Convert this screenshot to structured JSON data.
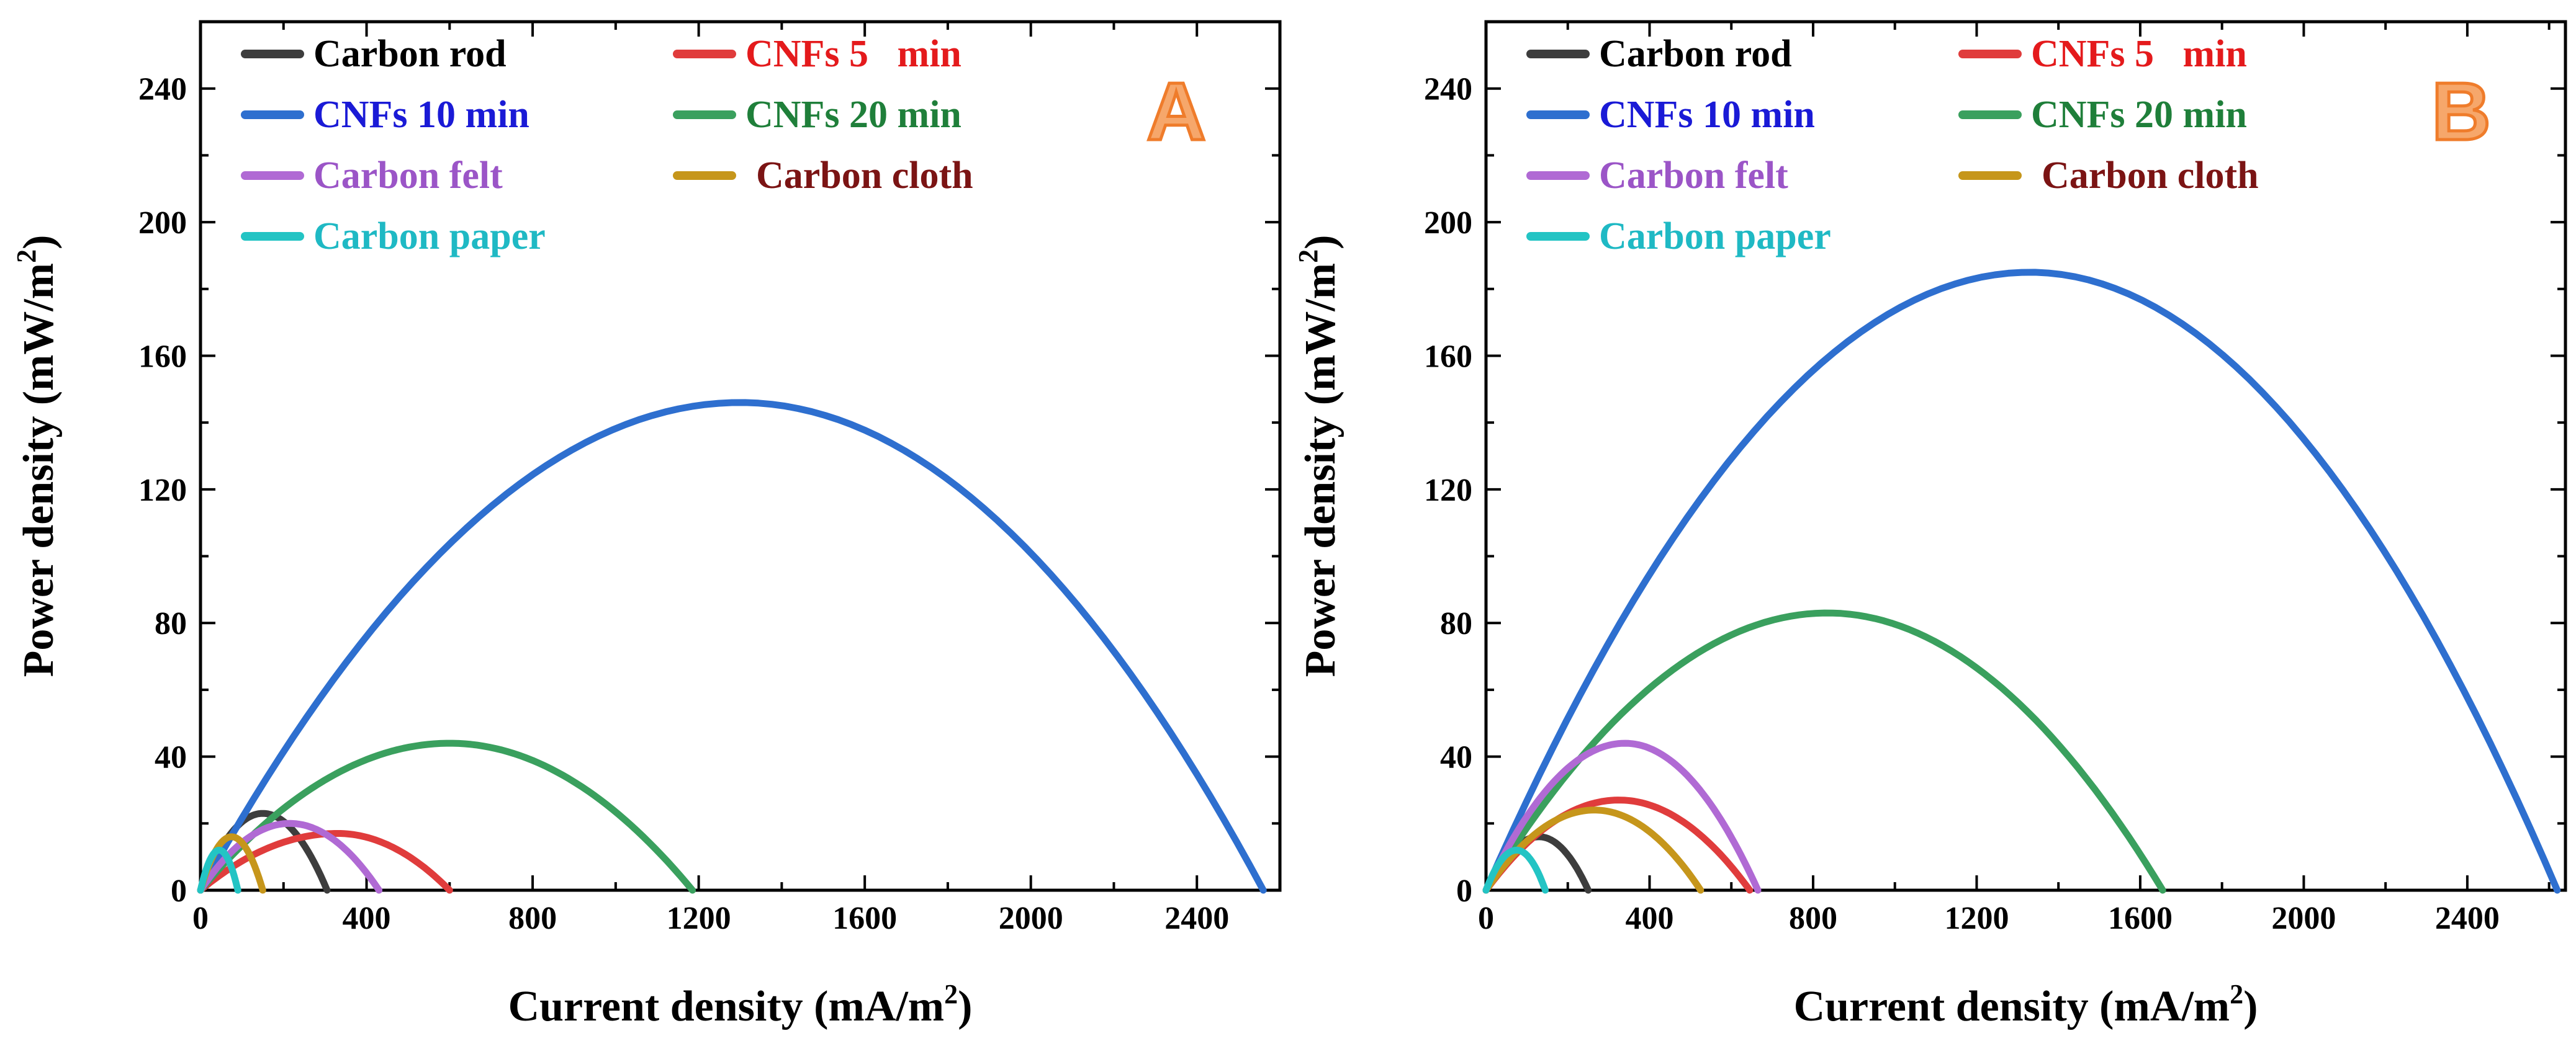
{
  "chart_data": [
    {
      "type": "line",
      "panel_label": "A",
      "xlabel": "Current density (mA/m",
      "xlabel_sup": "2",
      "ylabel": "Power density (mW/m",
      "ylabel_sup": "2",
      "xlim": [
        0,
        2600
      ],
      "ylim": [
        0,
        260
      ],
      "xticks": [
        0,
        400,
        800,
        1200,
        1600,
        2000,
        2400
      ],
      "yticks": [
        0,
        40,
        80,
        120,
        160,
        200,
        240
      ],
      "tick_labels_x": [
        "0",
        "400",
        "800",
        "1200",
        "1600",
        "2000",
        "2400"
      ],
      "tick_labels_y": [
        "0",
        "40",
        "80",
        "120",
        "160",
        "200",
        "240"
      ],
      "legend_location": "top-left, two columns",
      "series": [
        {
          "name": "Carbon rod",
          "color": "#3d3d3d",
          "text_color": "#000000",
          "peak_x": 150,
          "peak_y": 23,
          "max_x": 305
        },
        {
          "name": "CNFs 5   min",
          "color": "#e03c3c",
          "text_color": "#e41a1c",
          "peak_x": 330,
          "peak_y": 17,
          "max_x": 600
        },
        {
          "name": "CNFs 10 min",
          "color": "#2e6fcf",
          "text_color": "#1a1ad6",
          "peak_x": 1300,
          "peak_y": 146,
          "max_x": 2560
        },
        {
          "name": "CNFs 20 min",
          "color": "#3aa05e",
          "text_color": "#1f7f3a",
          "peak_x": 600,
          "peak_y": 44,
          "max_x": 1185
        },
        {
          "name": "Carbon felt",
          "color": "#b06ad4",
          "text_color": "#9b55c7",
          "peak_x": 215,
          "peak_y": 20,
          "max_x": 430
        },
        {
          "name": "Carbon cloth",
          "color": "#c6961b",
          "text_color": "#7b1414",
          "peak_x": 75,
          "peak_y": 16,
          "max_x": 150
        },
        {
          "name": "Carbon paper",
          "color": "#23c4c4",
          "text_color": "#1fb9c4",
          "peak_x": 45,
          "peak_y": 12,
          "max_x": 90
        }
      ]
    },
    {
      "type": "line",
      "panel_label": "B",
      "xlabel": "Current density (mA/m",
      "xlabel_sup": "2",
      "ylabel": "Power density (mW/m",
      "ylabel_sup": "2",
      "xlim": [
        0,
        2640
      ],
      "ylim": [
        0,
        260
      ],
      "xticks": [
        0,
        400,
        800,
        1200,
        1600,
        2000,
        2400
      ],
      "yticks": [
        0,
        40,
        80,
        120,
        160,
        200,
        240
      ],
      "tick_labels_x": [
        "0",
        "400",
        "800",
        "1200",
        "1600",
        "2000",
        "2400"
      ],
      "tick_labels_y": [
        "0",
        "40",
        "80",
        "120",
        "160",
        "200",
        "240"
      ],
      "legend_location": "top-left, two columns",
      "series": [
        {
          "name": "Carbon rod",
          "color": "#3d3d3d",
          "text_color": "#000000",
          "peak_x": 130,
          "peak_y": 16,
          "max_x": 250
        },
        {
          "name": "CNFs 5   min",
          "color": "#e03c3c",
          "text_color": "#e41a1c",
          "peak_x": 325,
          "peak_y": 27,
          "max_x": 645
        },
        {
          "name": "CNFs 10 min",
          "color": "#2e6fcf",
          "text_color": "#1a1ad6",
          "peak_x": 1330,
          "peak_y": 185,
          "max_x": 2620
        },
        {
          "name": "CNFs 20 min",
          "color": "#3aa05e",
          "text_color": "#1f7f3a",
          "peak_x": 835,
          "peak_y": 83,
          "max_x": 1655
        },
        {
          "name": "Carbon felt",
          "color": "#b06ad4",
          "text_color": "#9b55c7",
          "peak_x": 340,
          "peak_y": 44,
          "max_x": 665
        },
        {
          "name": "Carbon cloth",
          "color": "#c6961b",
          "text_color": "#7b1414",
          "peak_x": 265,
          "peak_y": 24,
          "max_x": 525
        },
        {
          "name": "Carbon paper",
          "color": "#23c4c4",
          "text_color": "#1fb9c4",
          "peak_x": 75,
          "peak_y": 12,
          "max_x": 145
        }
      ]
    }
  ]
}
